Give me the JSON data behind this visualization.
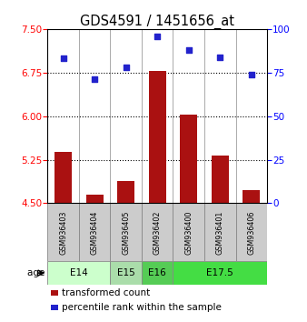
{
  "title": "GDS4591 / 1451656_at",
  "samples": [
    "GSM936403",
    "GSM936404",
    "GSM936405",
    "GSM936402",
    "GSM936400",
    "GSM936401",
    "GSM936406"
  ],
  "transformed_count": [
    5.38,
    4.65,
    4.88,
    6.78,
    6.02,
    5.32,
    4.72
  ],
  "percentile_rank": [
    83,
    71,
    78,
    96,
    88,
    84,
    74
  ],
  "age_groups": [
    {
      "label": "E14",
      "start": 0,
      "end": 2,
      "color": "#ccffcc"
    },
    {
      "label": "E15",
      "start": 2,
      "end": 3,
      "color": "#aaddaa"
    },
    {
      "label": "E16",
      "start": 3,
      "end": 4,
      "color": "#55cc55"
    },
    {
      "label": "E17.5",
      "start": 4,
      "end": 7,
      "color": "#44dd44"
    }
  ],
  "ylim_left": [
    4.5,
    7.5
  ],
  "ylim_right": [
    0,
    100
  ],
  "yticks_left": [
    4.5,
    5.25,
    6.0,
    6.75,
    7.5
  ],
  "yticks_right": [
    0,
    25,
    50,
    75,
    100
  ],
  "hlines": [
    5.25,
    6.0,
    6.75
  ],
  "bar_color": "#aa1111",
  "dot_color": "#2222cc",
  "bar_width": 0.55,
  "title_fontsize": 10.5,
  "tick_fontsize": 7.5,
  "sample_box_color": "#cccccc",
  "spine_color": "#888888"
}
